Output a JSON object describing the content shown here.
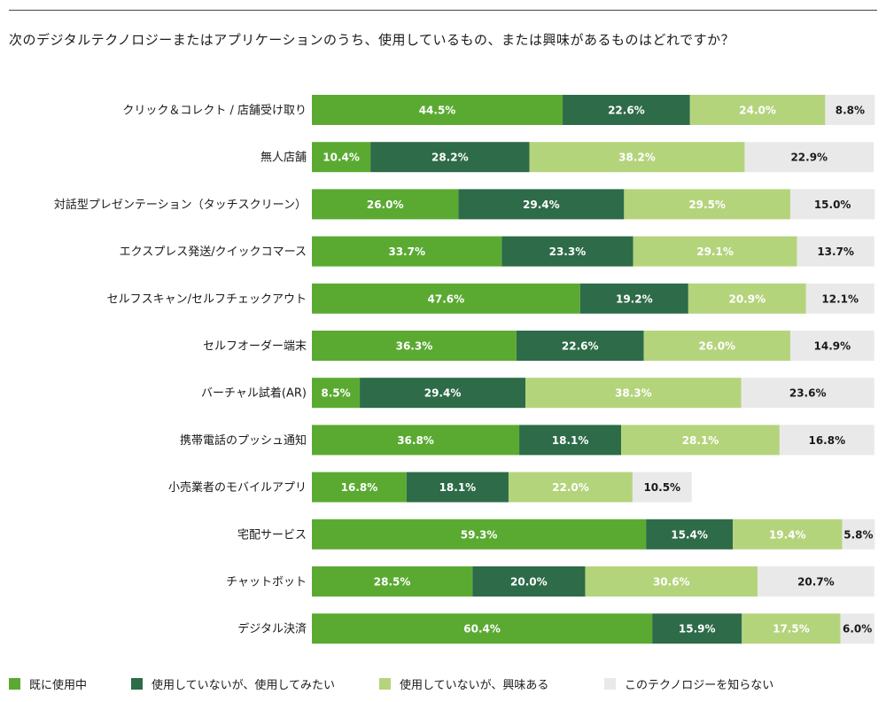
{
  "question": "次のデジタルテクノロジーまたはアプリケーションのうち、使用しているもの、または興味があるものはどれですか？",
  "chart_data": {
    "type": "bar",
    "orientation": "horizontal",
    "stacked": true,
    "normalized_percent": true,
    "categories": [
      "クリック＆コレクト / 店舗受け取り",
      "無人店舗",
      "対話型プレゼンテーション（タッチスクリーン）",
      "エクスプレス発送/クイックコマース",
      "セルフスキャン/セルフチェックアウト",
      "セルフオーダー端末",
      "バーチャル試着(AR)",
      "携帯電話のプッシュ通知",
      "小売業者のモバイルアプリ",
      "宅配サービス",
      "チャットボット",
      "デジタル決済"
    ],
    "series": [
      {
        "name": "既に使用中",
        "color": "#5aaa32",
        "label_color": "#ffffff",
        "values": [
          44.5,
          10.4,
          26.0,
          33.7,
          47.6,
          36.3,
          8.5,
          36.8,
          16.8,
          59.3,
          28.5,
          60.4
        ],
        "labels": [
          "44.5%",
          "10.4%",
          "26.0%",
          "33.7%",
          "47.6%",
          "36.3%",
          "8.5%",
          "36.8%",
          "16.8%",
          "59.3%",
          "28.5%",
          "60.4%"
        ]
      },
      {
        "name": "使用していないが、使用してみたい",
        "color": "#2e6b48",
        "label_color": "#ffffff",
        "values": [
          22.6,
          28.2,
          29.4,
          23.3,
          19.2,
          22.6,
          29.4,
          18.1,
          18.1,
          15.4,
          20.0,
          15.9
        ],
        "labels": [
          "22.6%",
          "28.2%",
          "29.4%",
          "23.3%",
          "19.2%",
          "22.6%",
          "29.4%",
          "18.1%",
          "18.1%",
          "15.4%",
          "20.0%",
          "15.9%"
        ]
      },
      {
        "name": "使用していないが、興味ある",
        "color": "#b4d47c",
        "label_color": "#ffffff",
        "values": [
          24.0,
          38.2,
          29.5,
          29.1,
          20.9,
          26.0,
          38.3,
          28.1,
          22.0,
          19.4,
          30.6,
          17.5
        ],
        "labels": [
          "24.0%",
          "38.2%",
          "29.5%",
          "29.1%",
          "20.9%",
          "26.0%",
          "38.3%",
          "28.1%",
          "22.0%",
          "19.4%",
          "30.6%",
          "17.5%"
        ]
      },
      {
        "name": "このテクノロジーを知らない",
        "color": "#e9e9e9",
        "label_color": "#1a1a1a",
        "values": [
          8.8,
          22.9,
          15.0,
          13.7,
          12.1,
          14.9,
          23.6,
          16.8,
          10.5,
          5.8,
          20.7,
          6.0
        ],
        "labels": [
          "8.8%",
          "22.9%",
          "15.0%",
          "13.7%",
          "12.1%",
          "14.9%",
          "23.6%",
          "16.8%",
          "10.5%",
          "5.8%",
          "20.7%",
          "6.0%"
        ]
      }
    ],
    "xlim": [
      0,
      100
    ],
    "legend_position": "bottom",
    "grid": false
  }
}
